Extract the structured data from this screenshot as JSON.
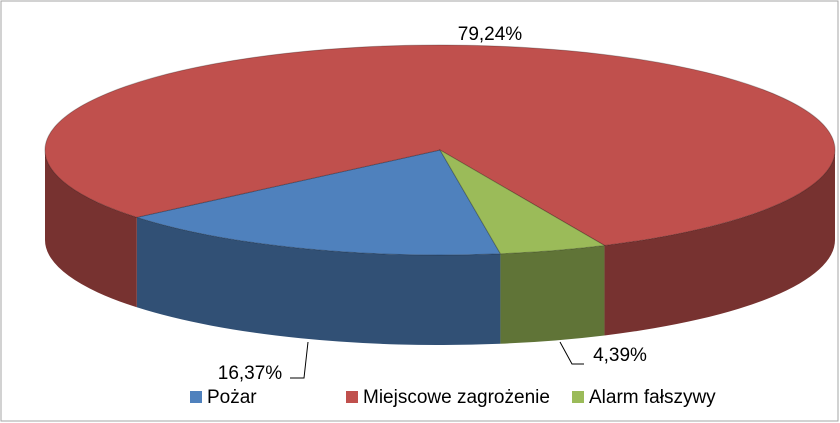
{
  "chart_data": {
    "type": "pie3d",
    "categories": [
      "Pożar",
      "Miejscowe zagrożenie",
      "Alarm fałszywy"
    ],
    "values": [
      16.37,
      79.24,
      4.39
    ],
    "value_labels": [
      "16,37%",
      "79,24%",
      "4,39%"
    ],
    "colors": [
      "#4f81bd",
      "#c0504d",
      "#9bbb59"
    ],
    "legend": "bottom"
  }
}
